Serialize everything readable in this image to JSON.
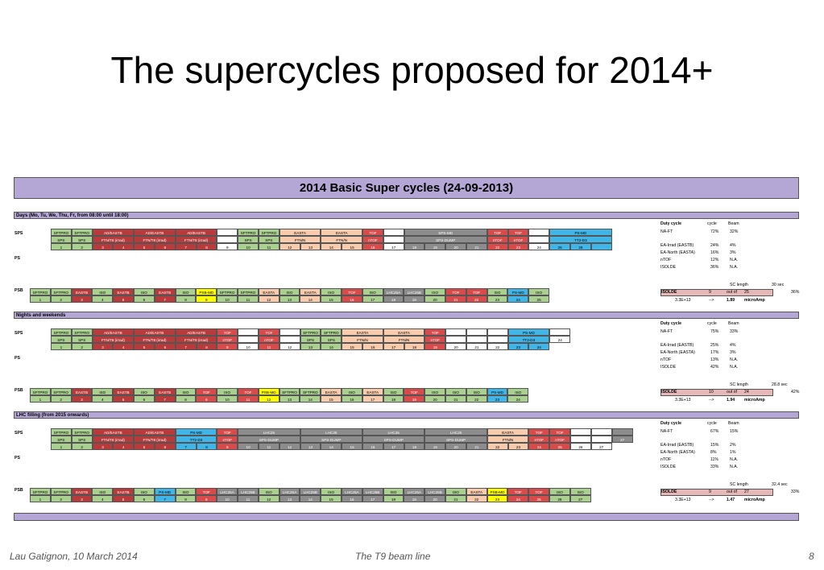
{
  "slide": {
    "title": "The supercycles proposed for 2014+",
    "footer_left": "Lau Gatignon, 10 March 2014",
    "footer_center": "The T9 beam line",
    "page_number": "8"
  },
  "table": {
    "banner": "2014 Basic Super cycles (24-09-2013)",
    "sections": [
      {
        "title": "Days (Mo, Tu, We, Thu, Fr, from 08:00 until 18:00)",
        "sps_label": "SPS",
        "ps_label": "PS",
        "psb_label": "PSB",
        "sps_blocks": [
          "NA fixed target",
          "NA fixed target",
          "SPS MD"
        ],
        "right": {
          "header": [
            "Duty cycle",
            "cycle",
            "Beam"
          ],
          "rows": [
            [
              "NA-FT",
              "72%",
              "32%"
            ],
            [
              "EA-Irrad (EASTB)",
              "24%",
              "4%"
            ],
            [
              "EA-North (EASTA)",
              "16%",
              "3%"
            ],
            [
              "nTOF",
              "12%",
              "N.A."
            ],
            [
              "ISOLDE",
              "36%",
              "N.A."
            ]
          ],
          "sc_length": [
            "SC length",
            "30 sec"
          ],
          "isolde": [
            "ISOLDE",
            "9",
            "out of",
            "25",
            "36%"
          ],
          "beam": [
            "3.3E+13",
            "-->",
            "1.89",
            "microAmp"
          ]
        }
      },
      {
        "title": "Nights and weekends",
        "sps_label": "SPS",
        "ps_label": "PS",
        "psb_label": "PSB",
        "sps_blocks": [
          "NA fixed target",
          "NA fixed target"
        ],
        "right": {
          "header": [
            "Duty cycle",
            "cycle",
            "Beam"
          ],
          "rows": [
            [
              "NA-FT",
              "75%",
              "33%"
            ],
            [
              "EA-Irrad (EASTB)",
              "25%",
              "4%"
            ],
            [
              "EA-North (EASTA)",
              "17%",
              "3%"
            ],
            [
              "nTOF",
              "13%",
              "N.A."
            ],
            [
              "ISOLDE",
              "42%",
              "N.A."
            ]
          ],
          "sc_length": [
            "SC length",
            "28.8 sec"
          ],
          "isolde": [
            "ISOLDE",
            "10",
            "out of",
            "24",
            "42%"
          ],
          "beam": [
            "3.3E+13",
            "-->",
            "1.94",
            "microAmp"
          ]
        }
      },
      {
        "title": "LHC filling (from 2015 onwards)",
        "sps_label": "SPS",
        "ps_label": "PS",
        "psb_label": "PSB",
        "sps_blocks": [
          "NA fixed target",
          "LHC"
        ],
        "right": {
          "header": [
            "Duty cycle",
            "cycle",
            "Beam"
          ],
          "rows": [
            [
              "NA-FT",
              "67%",
              "15%"
            ],
            [
              "EA-Irrad (EASTB)",
              "15%",
              "2%"
            ],
            [
              "EA-North (EASTA)",
              "8%",
              "1%"
            ],
            [
              "nTOF",
              "11%",
              "N.A."
            ],
            [
              "ISOLDE",
              "33%",
              "N.A."
            ]
          ],
          "sc_length": [
            "SC length",
            "32.4 sec"
          ],
          "isolde": [
            "ISOLDE",
            "9",
            "out of",
            "27",
            "33%"
          ],
          "beam": [
            "3.3E+13",
            "-->",
            "1.47",
            "microAmp"
          ]
        }
      }
    ],
    "ps_row1": {
      "days": [
        "SFTPRO",
        "SFTPRO",
        "AD/EASTB",
        "AD/EASTB",
        "AD/EASTB",
        "",
        "SFTPRO",
        "SFTPRO",
        "EASTA",
        "EASTA",
        "TOF",
        "",
        "SPS-MD",
        "TOF",
        "TOF",
        "",
        "PS-MD"
      ],
      "days2": [
        "SPS",
        "SPS",
        "FTN/T8 (irrad)",
        "FTN/T8 (irrad)",
        "FTN/T8 (irrad)",
        "",
        "SPS",
        "SPS",
        "FTN/N",
        "FTN/N",
        "nTOF",
        "",
        "SPS-DUMP",
        "nTOF",
        "nTOF",
        "",
        "TT2-D3"
      ],
      "nights": [
        "SFTPRO",
        "SFTPRO",
        "AD/EASTB",
        "AD/EASTB",
        "AD/EASTB",
        "TOF",
        "",
        "TOF",
        "",
        "SFTPRO",
        "SFTPRO",
        "EASTA",
        "EASTA",
        "TOF",
        "",
        "",
        "",
        "PS-MD"
      ],
      "nights2": [
        "SPS",
        "SPS",
        "FTN/T8 (irrad)",
        "FTN/T8 (irrad)",
        "FTN/T8 (irrad)",
        "nTOF",
        "",
        "nTOF",
        "",
        "SPS",
        "SPS",
        "FTN/N",
        "FTN/N",
        "nTOF",
        "",
        "",
        "",
        "TT2-D3"
      ],
      "lhc": [
        "SFTPRO",
        "SFTPRO",
        "AD/EASTB",
        "AD/EASTB",
        "PS-MD",
        "TOF",
        "LHC25",
        "LHC25",
        "LHC25",
        "LHC25",
        "EASTA",
        "TOF",
        "TOF",
        "",
        ""
      ],
      "lhc2": [
        "SPS",
        "SPS",
        "FTN/T8 (irrad)",
        "FTN/T8 (irrad)",
        "TT2-D3",
        "nTOF",
        "SPS-DUMP",
        "SPS-DUMP",
        "SPS-DUMP",
        "SPS-DUMP",
        "FTN/N",
        "nTOF",
        "nTOF",
        "",
        ""
      ]
    },
    "psb_rows": {
      "days": [
        "SFTPRO",
        "SFTPRO",
        "EASTB",
        "ISO",
        "EASTB",
        "ISO",
        "EASTB",
        "ISO",
        "PSB-MD",
        "SFTPRO",
        "SFTPRO",
        "EASTA",
        "ISO",
        "EASTA",
        "ISO",
        "TOF",
        "ISO",
        "LHC25A",
        "LHC25B",
        "ISO",
        "TOF",
        "TOF",
        "ISO",
        "PS-MD",
        "ISO"
      ],
      "nights": [
        "SFTPRO",
        "SFTPRO",
        "EASTB",
        "ISO",
        "EASTB",
        "ISO",
        "EASTB",
        "ISO",
        "TOF",
        "ISO",
        "TOF",
        "PSB-MD",
        "SFTPRO",
        "SFTPRO",
        "EASTA",
        "ISO",
        "EASTA",
        "ISO",
        "TOF",
        "ISO",
        "ISO",
        "ISO",
        "PS-MD",
        "ISO"
      ],
      "lhc": [
        "SFTPRO",
        "SFTPRO",
        "EASTB",
        "ISO",
        "EASTB",
        "ISO",
        "PS-MD",
        "ISO",
        "TOF",
        "LHC25A",
        "LHC25B",
        "ISO",
        "LHC25A",
        "LHC25B",
        "ISO",
        "LHC25A",
        "LHC25B",
        "ISO",
        "LHC25A",
        "LHC25B",
        "ISO",
        "EASTA",
        "PSB-MD",
        "TOF",
        "TOF",
        "ISO",
        "ISO"
      ]
    }
  }
}
